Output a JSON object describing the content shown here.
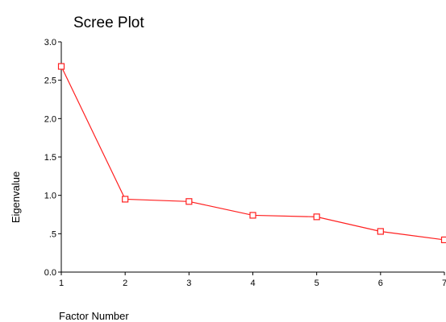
{
  "chart_data": {
    "type": "line",
    "title": "Scree Plot",
    "xlabel": "Factor Number",
    "ylabel": "Eigenvalue",
    "x": [
      1,
      2,
      3,
      4,
      5,
      6,
      7
    ],
    "xticks": [
      "1",
      "2",
      "3",
      "4",
      "5",
      "6",
      "7"
    ],
    "yticks": [
      {
        "value": 0,
        "label": "0.0"
      },
      {
        "value": 0.5,
        "label": ".5"
      },
      {
        "value": 1.0,
        "label": "1.0"
      },
      {
        "value": 1.5,
        "label": "1.5"
      },
      {
        "value": 2.0,
        "label": "2.0"
      },
      {
        "value": 2.5,
        "label": "2.5"
      },
      {
        "value": 3.0,
        "label": "3.0"
      }
    ],
    "xlim": [
      1,
      7
    ],
    "ylim": [
      0,
      3
    ],
    "grid": false,
    "series": [
      {
        "values": [
          2.68,
          0.95,
          0.92,
          0.74,
          0.72,
          0.53,
          0.42
        ],
        "color": "#ff2020",
        "marker": "open-square"
      }
    ]
  }
}
